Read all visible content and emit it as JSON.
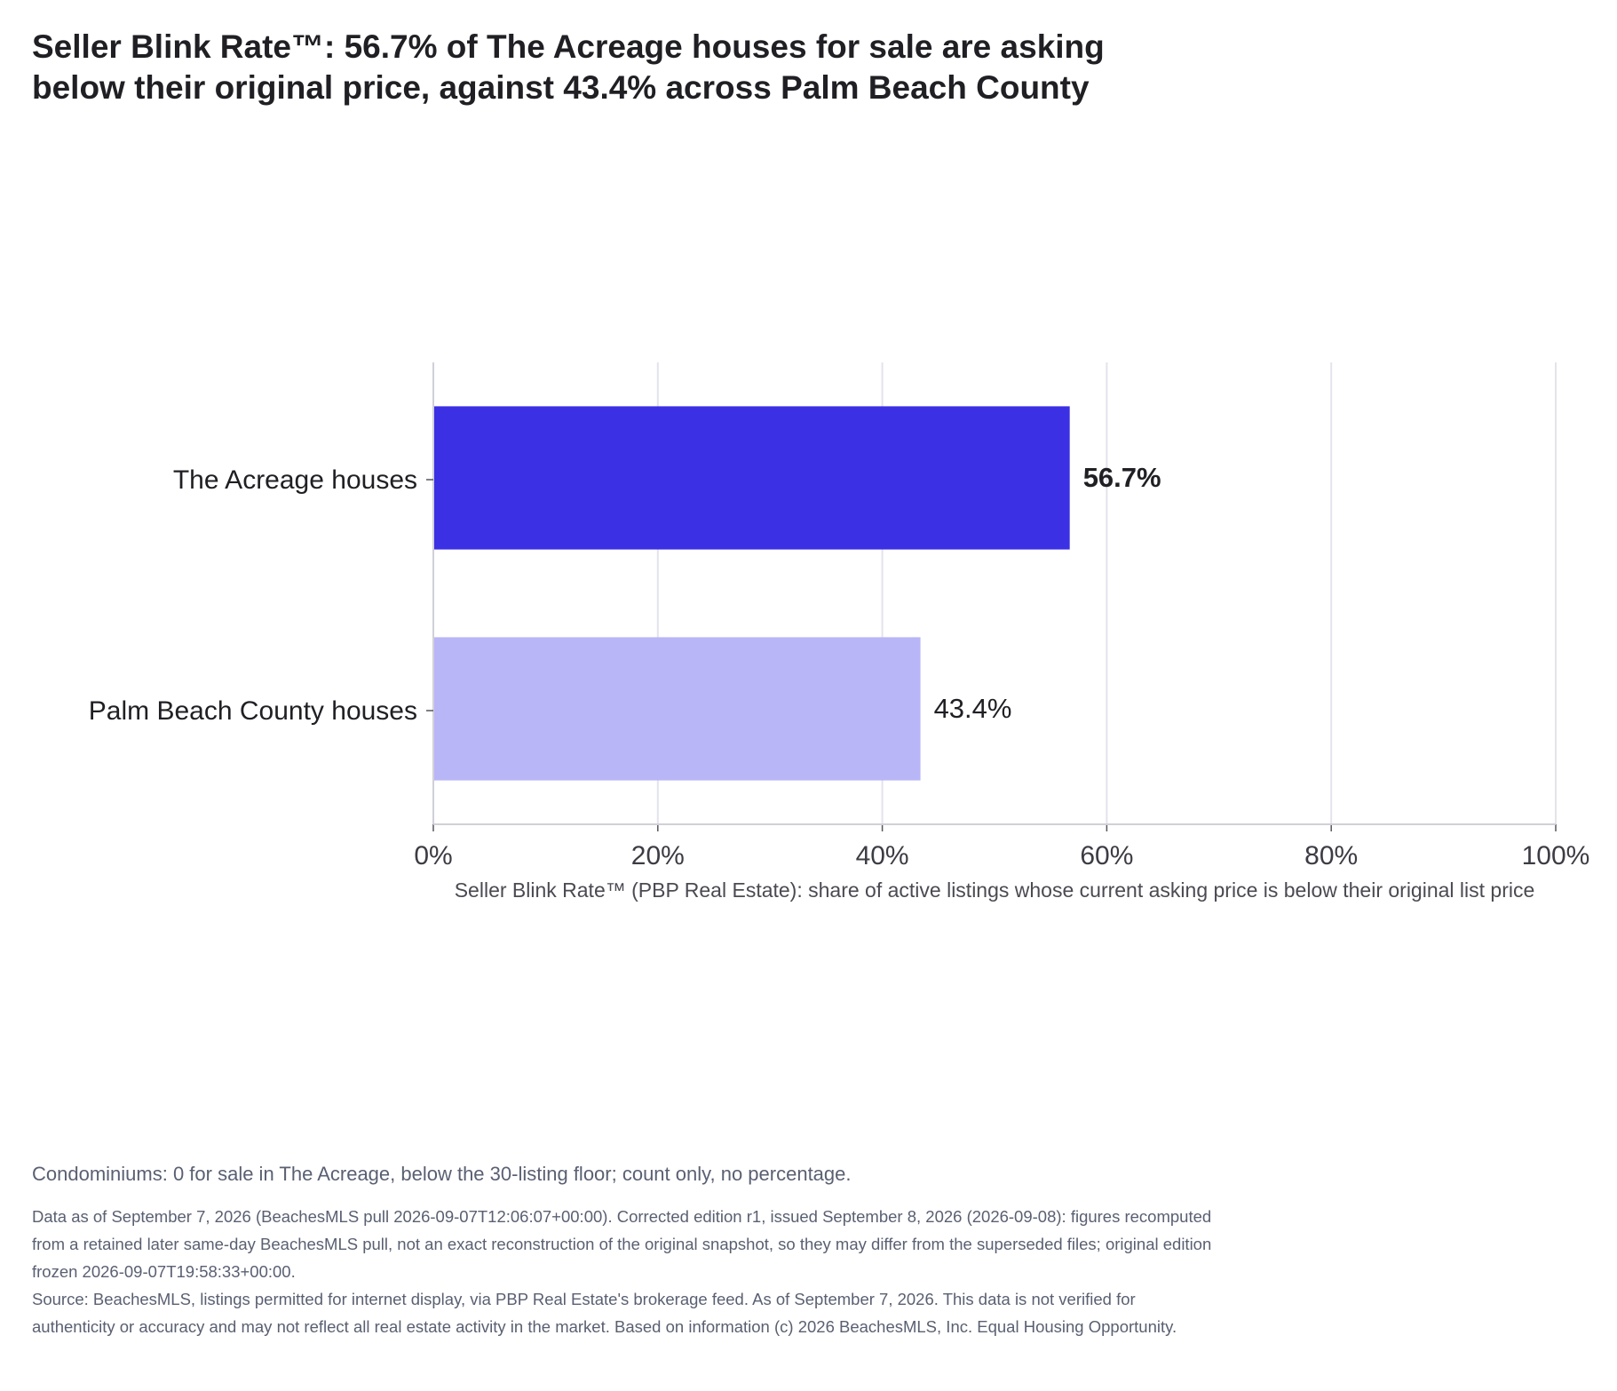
{
  "title": "Seller Blink Rate™: 56.7% of The Acreage houses for sale are asking below their original price, against 43.4% across Palm Beach County",
  "colors": {
    "highlight": "#3b30e3",
    "comparison": "#b8b6f6",
    "grid": "#e3e3ec",
    "axis": "#d0d0d8"
  },
  "chart_data": {
    "type": "bar",
    "orientation": "horizontal",
    "categories": [
      "The Acreage houses",
      "Palm Beach County houses"
    ],
    "values": [
      56.7,
      43.4
    ],
    "value_labels": [
      "56.7%",
      "43.4%"
    ],
    "xlabel": "Seller Blink Rate™ (PBP Real Estate): share of active listings whose current asking price is below their original list price",
    "ylabel": "",
    "xlim": [
      0,
      100
    ],
    "xticks": [
      0,
      20,
      40,
      60,
      80,
      100
    ],
    "xtick_labels": [
      "0%",
      "20%",
      "40%",
      "60%",
      "80%",
      "100%"
    ],
    "grid": true,
    "legend": "none"
  },
  "note": "Condominiums: 0 for sale in The Acreage, below the 30-listing floor; count only, no percentage.",
  "footer": {
    "edition": "Data as of September 7, 2026 (BeachesMLS pull 2026-09-07T12:06:07+00:00). Corrected edition r1, issued September 8, 2026 (2026-09-08): figures recomputed from a retained later same-day BeachesMLS pull, not an exact reconstruction of the original snapshot, so they may differ from the superseded files; original edition frozen 2026-09-07T19:58:33+00:00.",
    "source": "Source: BeachesMLS, listings permitted for internet display, via PBP Real Estate's brokerage feed. As of September 7, 2026. This data is not verified for authenticity or accuracy and may not reflect all real estate activity in the market. Based on information (c) 2026 BeachesMLS, Inc. Equal Housing Opportunity."
  }
}
